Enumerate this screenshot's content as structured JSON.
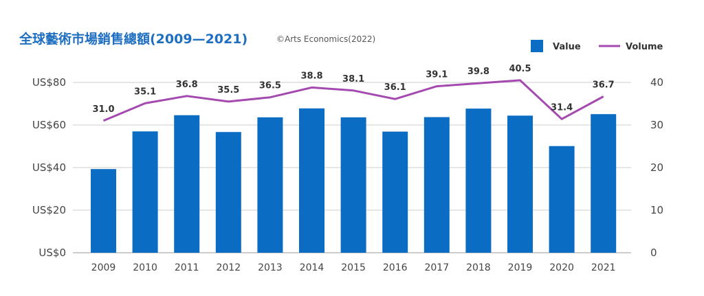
{
  "chart_data": {
    "type": "bar",
    "title": "全球藝術市場銷售總額(2009—2021)",
    "source": "©Arts Economics(2022)",
    "categories": [
      "2009",
      "2010",
      "2011",
      "2012",
      "2013",
      "2014",
      "2015",
      "2016",
      "2017",
      "2018",
      "2019",
      "2020",
      "2021"
    ],
    "series": [
      {
        "name": "Value",
        "type": "bar",
        "axis": "left",
        "color": "#0b6cc4",
        "values": [
          39.3,
          57.0,
          64.6,
          56.7,
          63.6,
          67.8,
          63.6,
          56.9,
          63.7,
          67.7,
          64.4,
          50.1,
          65.1
        ]
      },
      {
        "name": "Volume",
        "type": "line",
        "axis": "right",
        "color": "#a449b0",
        "values": [
          31.0,
          35.1,
          36.8,
          35.5,
          36.5,
          38.8,
          38.1,
          36.1,
          39.1,
          39.8,
          40.5,
          31.4,
          36.7
        ]
      }
    ],
    "y_left": {
      "min": 0,
      "max": 80,
      "ticks": [
        0,
        20,
        40,
        60,
        80
      ],
      "tick_labels": [
        "US$0",
        "US$20",
        "US$40",
        "US$60",
        "US$80"
      ]
    },
    "y_right": {
      "min": 0,
      "max": 40,
      "ticks": [
        0,
        10,
        20,
        30,
        40
      ],
      "tick_labels": [
        "0",
        "10",
        "20",
        "30",
        "40"
      ]
    },
    "data_labels": [
      "31.0",
      "35.1",
      "36.8",
      "35.5",
      "36.5",
      "38.8",
      "38.1",
      "36.1",
      "39.1",
      "39.8",
      "40.5",
      "31.4",
      "36.7"
    ],
    "legend": {
      "position": "top-right",
      "items": [
        "Value",
        "Volume"
      ]
    },
    "grid": "horizontal",
    "xlabel": "",
    "ylabel": ""
  }
}
